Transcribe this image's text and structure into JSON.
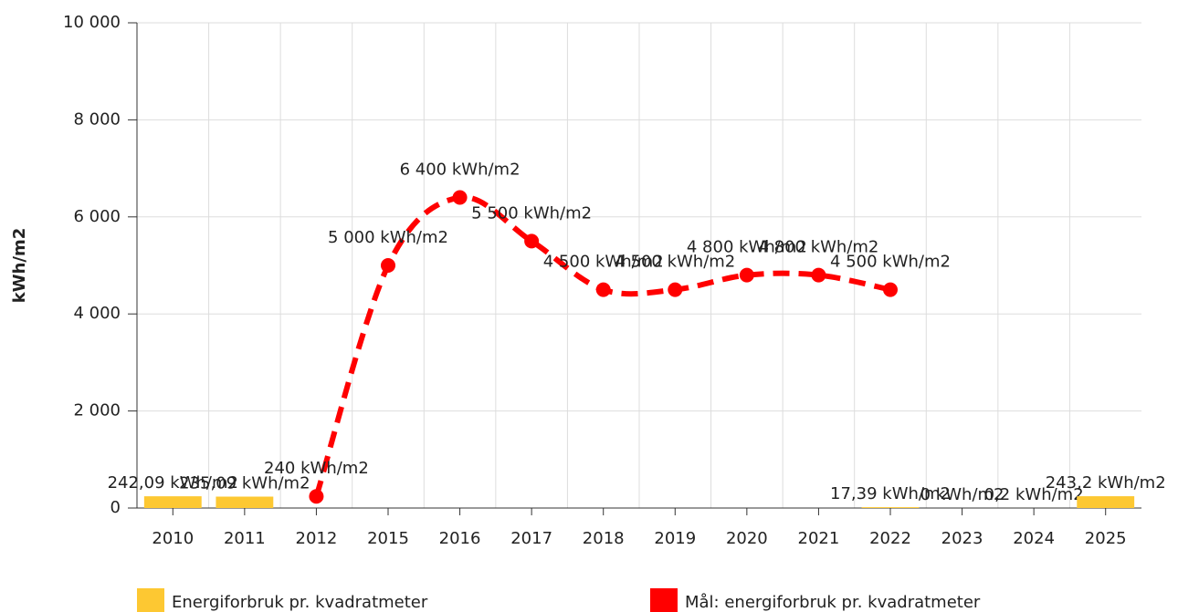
{
  "chart_data": {
    "type": "bar-line",
    "y_label": "kWh/m2",
    "categories": [
      "2010",
      "2011",
      "2012",
      "2015",
      "2016",
      "2017",
      "2018",
      "2019",
      "2020",
      "2021",
      "2022",
      "2023",
      "2024",
      "2025"
    ],
    "series": [
      {
        "name": "Energiforbruk pr. kvadratmeter",
        "type": "bar",
        "color": "#fdc832",
        "values": [
          242.09,
          235.09,
          null,
          null,
          null,
          null,
          null,
          null,
          null,
          null,
          17.39,
          0,
          0.2,
          243.2
        ],
        "value_labels": [
          "242,09 kWh/m2",
          "235,09 kWh/m2",
          null,
          null,
          null,
          null,
          null,
          null,
          null,
          null,
          "17,39 kWh/m2",
          "0 kWh/m2",
          "0,2 kWh/m2",
          "243,2 kWh/m2"
        ]
      },
      {
        "name": "Mål: energiforbruk pr. kvadratmeter",
        "type": "line",
        "color": "#ff0000",
        "values": [
          null,
          null,
          240,
          5000,
          6400,
          5500,
          4500,
          4500,
          4800,
          4800,
          4500,
          null,
          null,
          null
        ],
        "value_labels": [
          null,
          null,
          "240 kWh/m2",
          "5 000 kWh/m2",
          "6 400 kWh/m2",
          "5 500 kWh/m2",
          "4 500 kWh/m2",
          "4 500 kWh/m2",
          "4 800 kWh/m2",
          "4 800 kWh/m2",
          "4 500 kWh/m2",
          null,
          null,
          null
        ]
      }
    ],
    "ylim": [
      0,
      10000
    ],
    "yticks": [
      0,
      {
        "value": 2000,
        "label": "2 000"
      },
      {
        "value": 4000,
        "label": "4 000"
      },
      {
        "value": 6000,
        "label": "6 000"
      },
      {
        "value": 8000,
        "label": "8 000"
      },
      {
        "value": 10000,
        "label": "10 000"
      }
    ],
    "grid": true
  }
}
